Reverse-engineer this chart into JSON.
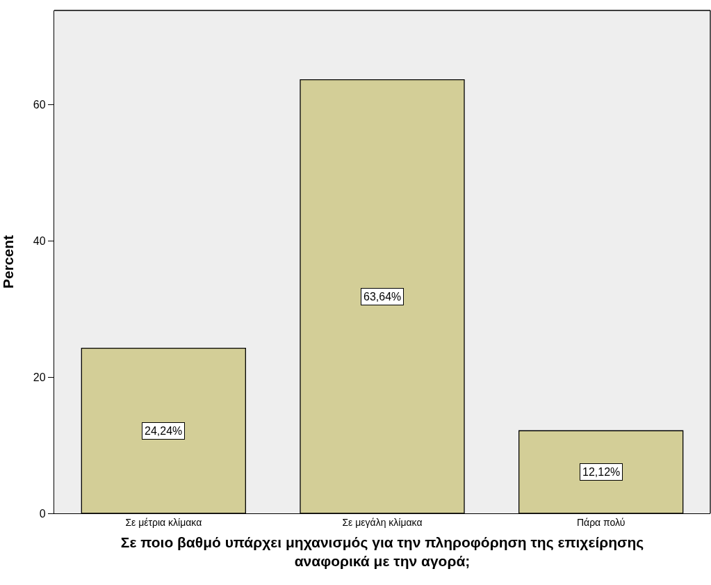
{
  "chart_data": {
    "type": "bar",
    "xlabel": "Σε ποιο βαθμό υπάρχει μηχανισμός για την πληροφόρηση της επιχείρησης αναφορικά με την αγορά;",
    "ylabel": "Percent",
    "categories": [
      "Σε μέτρια κλίμακα",
      "Σε μεγάλη κλίμακα",
      "Πάρα πολύ"
    ],
    "values": [
      24.24,
      63.64,
      12.12
    ],
    "value_labels": [
      "24,24%",
      "63,64%",
      "12,12%"
    ],
    "color": "#d3ce97",
    "ylim": [
      0,
      73.8
    ],
    "yticks": [
      0,
      20,
      40,
      60
    ],
    "grid": false
  }
}
